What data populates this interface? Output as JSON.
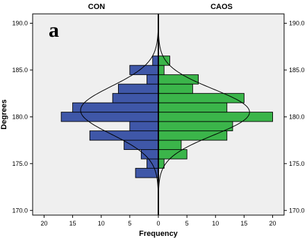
{
  "chart_data": {
    "type": "bar",
    "orientation": "back-to-back-horizontal-histogram",
    "panel_label": "a",
    "xlabel": "Frequency",
    "ylabel": "Degrees",
    "ylim": [
      169.5,
      191.0
    ],
    "xlim": [
      -22,
      22
    ],
    "y_ticks": [
      "170.0",
      "175.0",
      "180.0",
      "185.0",
      "190.0"
    ],
    "y_tick_values": [
      170,
      175,
      180,
      185,
      190
    ],
    "x_ticks": [
      "20",
      "15",
      "10",
      "5",
      "0",
      "5",
      "10",
      "15",
      "20"
    ],
    "x_tick_values": [
      -20,
      -15,
      -10,
      -5,
      0,
      5,
      10,
      15,
      20
    ],
    "bin_width": 1.0,
    "grid": false,
    "background_color": "#efefef",
    "normal_curve": true,
    "series": [
      {
        "name": "CON",
        "side": "left",
        "color": "#3f57a8",
        "bins": [
          174,
          175,
          176,
          177,
          178,
          179,
          180,
          181,
          182,
          183,
          184,
          185,
          186
        ],
        "values": [
          4,
          2,
          3,
          6,
          12,
          5,
          17,
          15,
          8,
          7,
          2,
          5,
          1
        ],
        "normal": {
          "mean": 180.7,
          "sd": 2.55,
          "n": 87
        }
      },
      {
        "name": "CAOS",
        "side": "right",
        "color": "#3bb54a",
        "bins": [
          175,
          176,
          177,
          178,
          179,
          180,
          181,
          182,
          183,
          184,
          185,
          186
        ],
        "values": [
          1,
          5,
          4,
          12,
          13,
          20,
          12,
          15,
          6,
          7,
          1,
          2
        ],
        "normal": {
          "mean": 180.5,
          "sd": 2.45,
          "n": 98
        }
      }
    ]
  }
}
